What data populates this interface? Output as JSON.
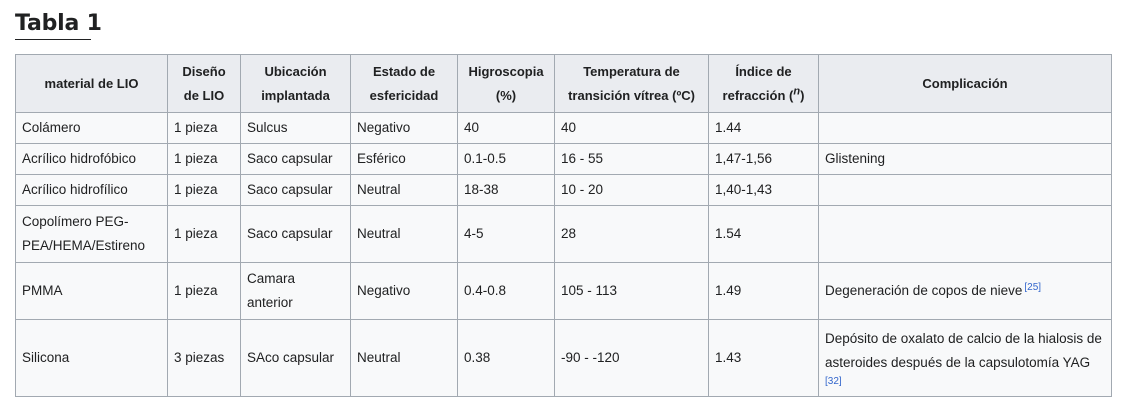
{
  "heading": "Tabla 1",
  "table": {
    "headers": [
      "material de LIO",
      "Diseño de LIO",
      "Ubicación implantada",
      "Estado de esfericidad",
      "Higroscopia (%)",
      "Temperatura de transición vítrea (ºC)",
      "Índice de refracción (",
      "Complicación"
    ],
    "header_n_symbol": "n",
    "header_close_paren": ")",
    "rows": [
      [
        "Colámero",
        "1 pieza",
        "Sulcus",
        "Negativo",
        "40",
        "40",
        "1.44",
        ""
      ],
      [
        "Acrílico hidrofóbico",
        "1 pieza",
        "Saco capsular",
        "Esférico",
        "0.1-0.5",
        "16 - 55",
        "1,47-1,56",
        "Glistening"
      ],
      [
        "Acrílico hidrofílico",
        "1 pieza",
        "Saco capsular",
        "Neutral",
        "18-38",
        "10 - 20",
        "1,40-1,43",
        ""
      ],
      [
        "Copolímero PEG-PEA/HEMA/Estireno",
        "1 pieza",
        "Saco capsular",
        "Neutral",
        "4-5",
        "28",
        "1.54",
        ""
      ],
      [
        "PMMA",
        "1 pieza",
        "Camara anterior",
        "Negativo",
        "0.4-0.8",
        "105 - 113",
        "1.49",
        "Degeneración de copos de nieve"
      ],
      [
        "Silicona",
        "3 piezas",
        "SAco capsular",
        "Neutral",
        "0.38",
        "-90 - -120",
        "1.43",
        "Depósito de oxalato de calcio de la hialosis de asteroides después de la capsulotomía YAG"
      ]
    ],
    "references": {
      "row5": "[25]",
      "row6": "[32]"
    }
  }
}
